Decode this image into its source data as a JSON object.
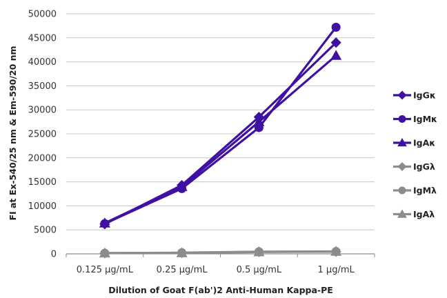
{
  "chart_data": {
    "type": "line",
    "title": "",
    "xlabel": "Dilution of Goat F(ab')2 Anti-Human Kappa-PE",
    "ylabel": "FI at Ex-540/25 nm & Em-590/20 nm",
    "categories": [
      "0.125 µg/mL",
      "0.25 µg/mL",
      "0.5 µg/mL",
      "1 µg/mL"
    ],
    "ylim": [
      0,
      50000
    ],
    "yticks": [
      0,
      5000,
      10000,
      15000,
      20000,
      25000,
      30000,
      35000,
      40000,
      45000,
      50000
    ],
    "grid": true,
    "legend": "right",
    "series": [
      {
        "name": "IgGκ",
        "values": [
          6200,
          14300,
          28500,
          44000
        ],
        "color": "#3f11a3",
        "marker": "diamond"
      },
      {
        "name": "IgMκ",
        "values": [
          6300,
          13600,
          26300,
          47200
        ],
        "color": "#3f11a3",
        "marker": "circle"
      },
      {
        "name": "IgAκ",
        "values": [
          6400,
          14000,
          27500,
          41300
        ],
        "color": "#3f11a3",
        "marker": "triangle"
      },
      {
        "name": "IgGλ",
        "values": [
          150,
          200,
          400,
          450
        ],
        "color": "#8c8c8c",
        "marker": "diamond"
      },
      {
        "name": "IgMλ",
        "values": [
          150,
          250,
          450,
          500
        ],
        "color": "#8c8c8c",
        "marker": "circle"
      },
      {
        "name": "IgAλ",
        "values": [
          150,
          200,
          400,
          500
        ],
        "color": "#8c8c8c",
        "marker": "triangle"
      }
    ]
  }
}
